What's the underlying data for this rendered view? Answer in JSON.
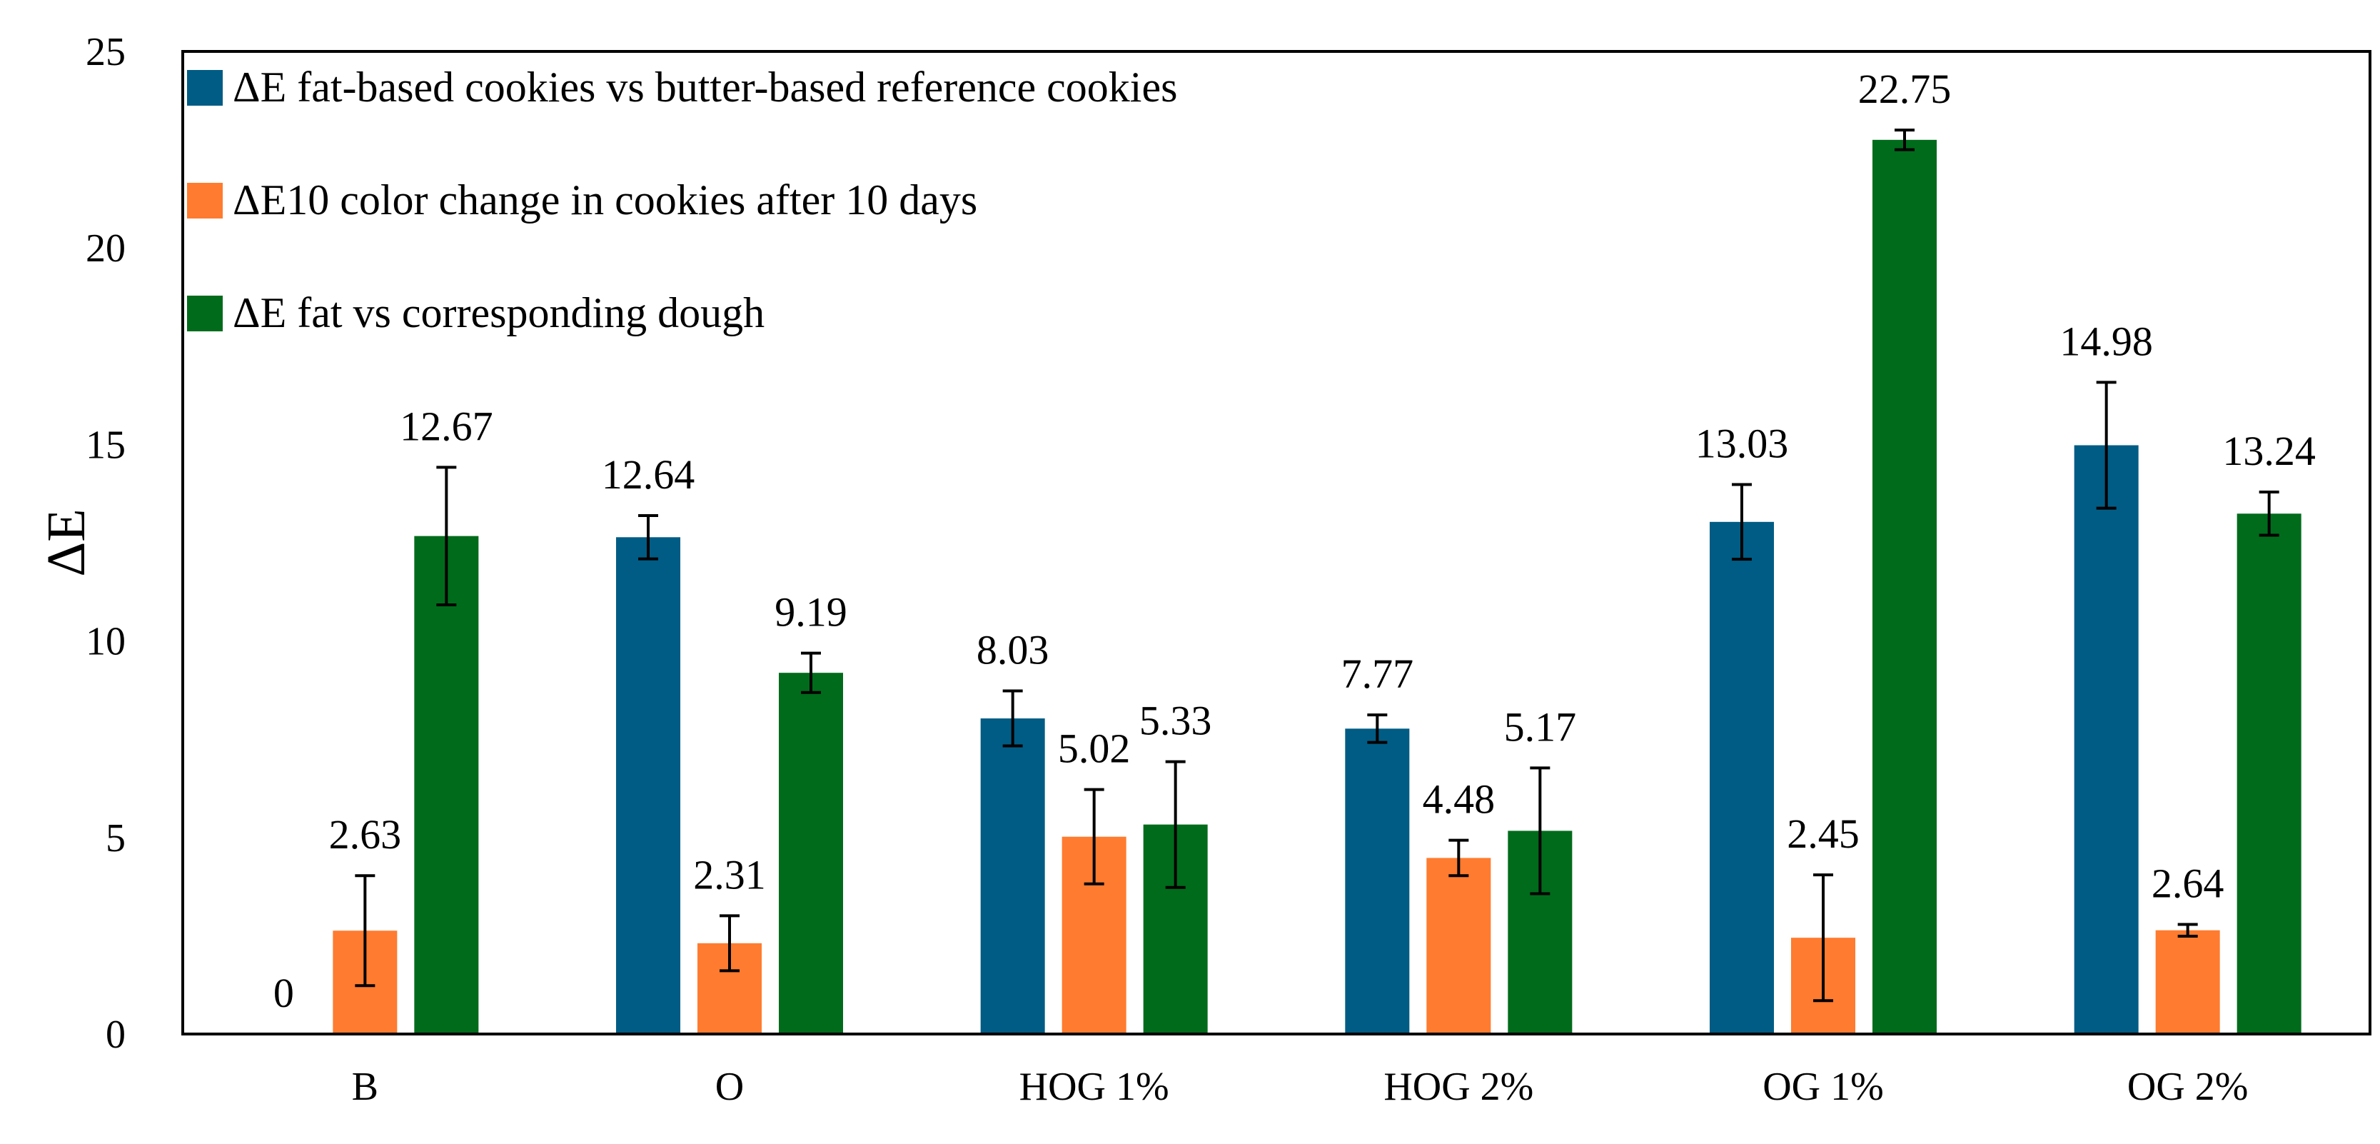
{
  "chart_data": {
    "type": "bar",
    "title": "",
    "xlabel": "",
    "ylabel": "ΔE",
    "ylim": [
      0,
      25
    ],
    "yticks": [
      0,
      5,
      10,
      15,
      20,
      25
    ],
    "grid": false,
    "legend_position": "top-left",
    "categories": [
      "B",
      "O",
      "HOG 1%",
      "HOG 2%",
      "OG 1%",
      "OG 2%"
    ],
    "series": [
      {
        "name": "ΔE fat-based cookies vs butter-based reference cookies",
        "color": "#005c84",
        "values": [
          0,
          12.64,
          8.03,
          7.77,
          13.03,
          14.98
        ],
        "labels": [
          "0",
          "12.64",
          "8.03",
          "7.77",
          "13.03",
          "14.98"
        ],
        "errors": [
          0,
          0.55,
          0.7,
          0.35,
          0.95,
          1.6
        ]
      },
      {
        "name": "ΔE10 color change in cookies after 10 days",
        "color": "#ff7b2f",
        "values": [
          2.63,
          2.31,
          5.02,
          4.48,
          2.45,
          2.64
        ],
        "labels": [
          "2.63",
          "2.31",
          "5.02",
          "4.48",
          "2.45",
          "2.64"
        ],
        "errors": [
          1.4,
          0.7,
          1.2,
          0.45,
          1.6,
          0.15
        ]
      },
      {
        "name": "ΔE fat vs corresponding dough",
        "color": "#006b1b",
        "values": [
          12.67,
          9.19,
          5.33,
          5.17,
          22.75,
          13.24
        ],
        "labels": [
          "12.67",
          "9.19",
          "5.33",
          "5.17",
          "22.75",
          "13.24"
        ],
        "errors": [
          1.75,
          0.5,
          1.6,
          1.6,
          0.25,
          0.55
        ]
      }
    ]
  }
}
